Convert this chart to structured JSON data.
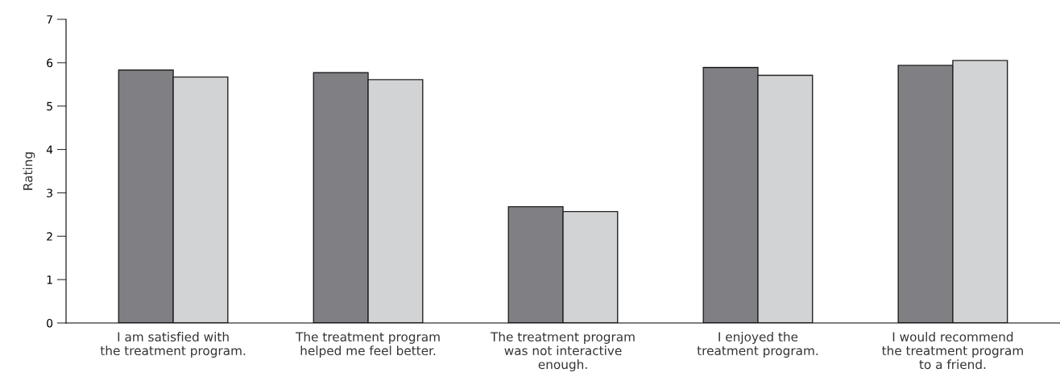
{
  "chart_data": {
    "type": "bar",
    "ylabel": "Rating",
    "categories": [
      "I am satisfied with\nthe treatment program.",
      "The treatment program\nhelped me feel better.",
      "The treatment program\nwas not interactive\nenough.",
      "I enjoyed the\ntreatment program.",
      "I would recommend\nthe treatment program\nto a friend."
    ],
    "series": [
      {
        "color": "#808084",
        "values": [
          5.83,
          5.77,
          2.68,
          5.89,
          5.94
        ]
      },
      {
        "color": "#d2d3d5",
        "values": [
          5.67,
          5.61,
          2.57,
          5.71,
          6.05
        ]
      }
    ],
    "ylim": [
      0,
      7
    ],
    "yticks": [
      0,
      1,
      2,
      3,
      4,
      5,
      6,
      7
    ],
    "grid": false
  }
}
